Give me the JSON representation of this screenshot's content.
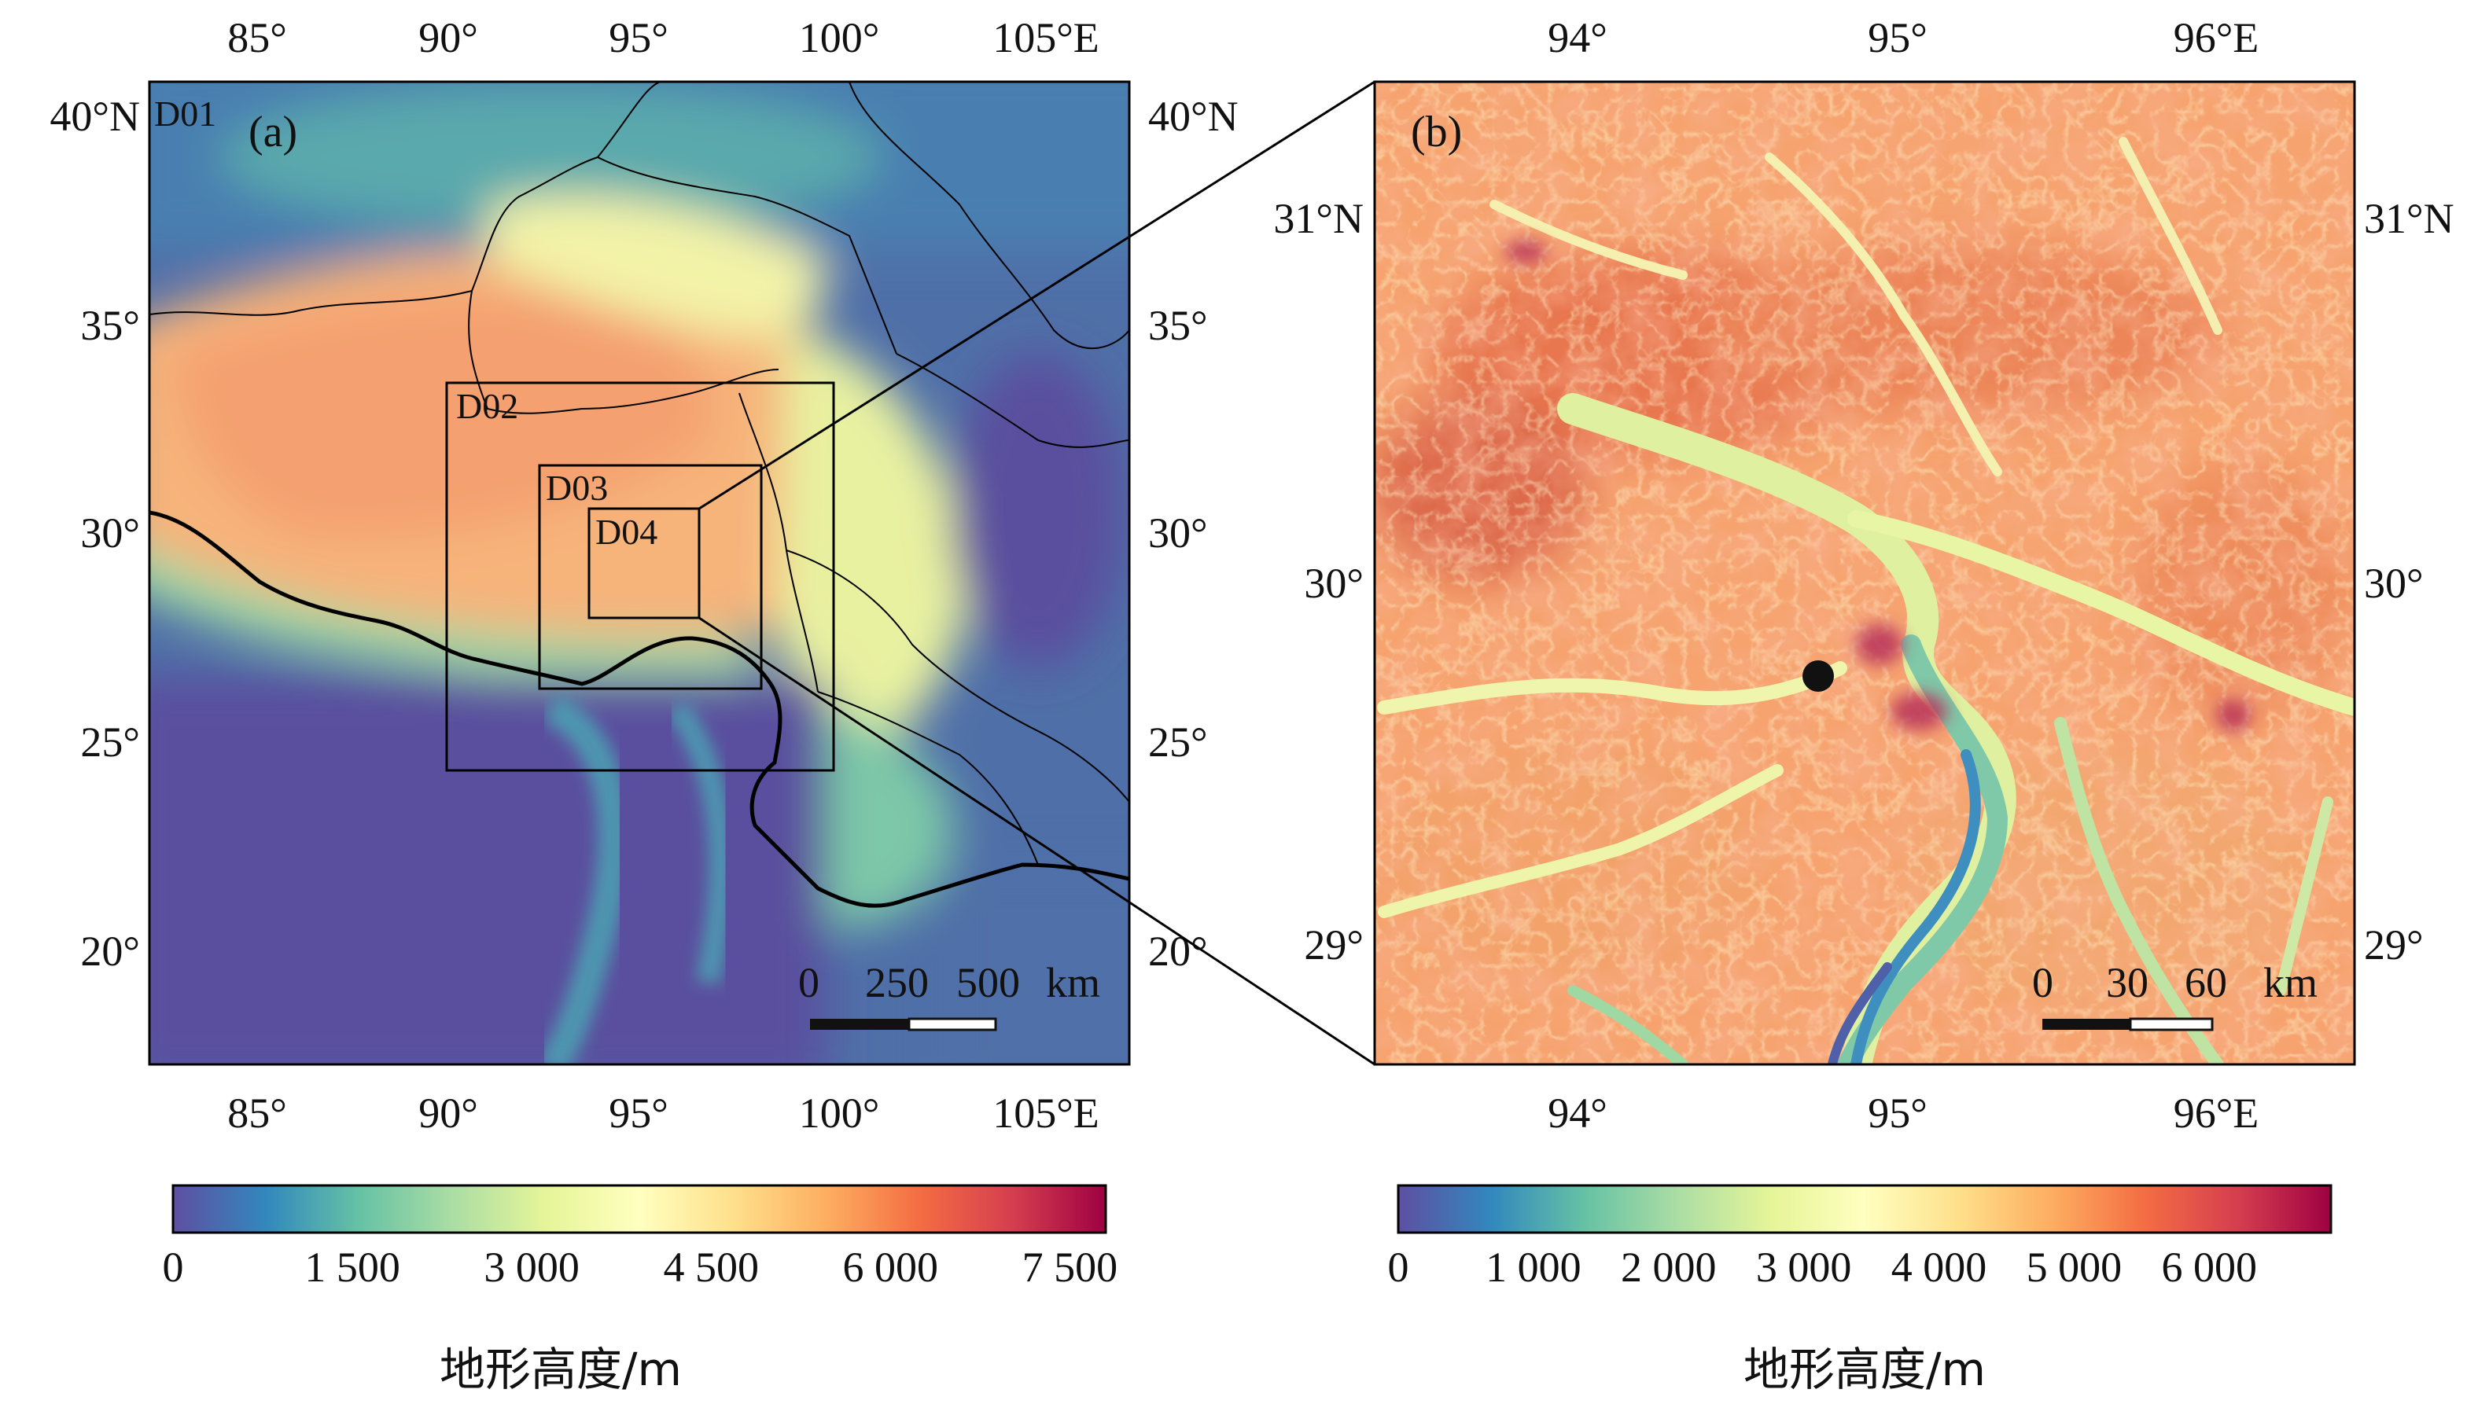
{
  "colormap": [
    "#5e4fa2",
    "#3288bd",
    "#66c2a5",
    "#abdda4",
    "#e6f598",
    "#ffffbf",
    "#fee08b",
    "#fdae61",
    "#f46d43",
    "#d53e4f",
    "#9e0142"
  ],
  "panel_a": {
    "label": "(a)",
    "top_ticks": [
      "85°",
      "90°",
      "95°",
      "100°",
      "105°E"
    ],
    "bottom_ticks": [
      "85°",
      "90°",
      "95°",
      "100°",
      "105°E"
    ],
    "left_ticks": [
      "40°N",
      "35°",
      "30°",
      "25°",
      "20°"
    ],
    "right_ticks": [
      "40°N",
      "35°",
      "30°",
      "25°",
      "20°"
    ],
    "domains": [
      "D01",
      "D02",
      "D03",
      "D04"
    ],
    "scale_bar": {
      "ticks": [
        "0",
        "250",
        "500"
      ],
      "unit": "km"
    },
    "colorbar": {
      "ticks": [
        "0",
        "1 500",
        "3 000",
        "4 500",
        "6 000",
        "7 500"
      ],
      "range": [
        0,
        7800
      ],
      "title": "地形高度/m"
    }
  },
  "panel_b": {
    "label": "(b)",
    "top_ticks": [
      "94°",
      "95°",
      "96°E"
    ],
    "bottom_ticks": [
      "94°",
      "95°",
      "96°E"
    ],
    "left_ticks": [
      "31°N",
      "30°",
      "29°"
    ],
    "right_ticks": [
      "31°N",
      "30°",
      "29°"
    ],
    "marker": "site",
    "scale_bar": {
      "ticks": [
        "0",
        "30",
        "60"
      ],
      "unit": "km"
    },
    "colorbar": {
      "ticks": [
        "0",
        "1 000",
        "2 000",
        "3 000",
        "4 000",
        "5 000",
        "6 000"
      ],
      "range": [
        0,
        6900
      ],
      "title": "地形高度/m"
    }
  }
}
